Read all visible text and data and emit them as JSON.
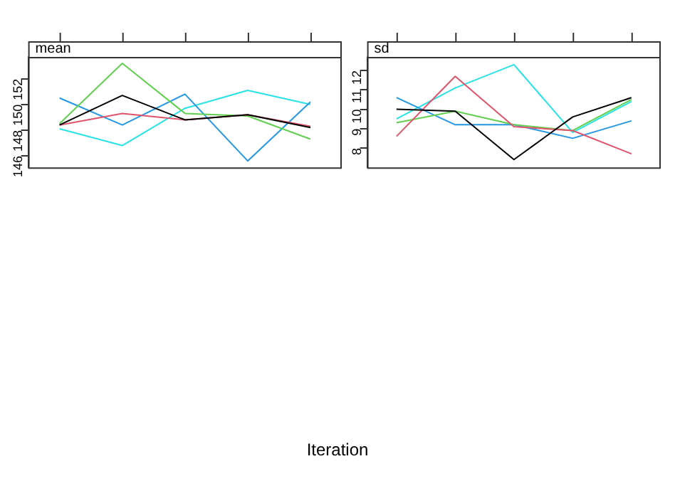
{
  "chart_data": [
    {
      "type": "line",
      "title": "mean",
      "xlabel": "Iteration",
      "categories": [
        null,
        null,
        null,
        null,
        null
      ],
      "ylim": [
        145.1,
        153.7
      ],
      "yticks": [
        146,
        148,
        150,
        152
      ],
      "grid": false,
      "legend": false,
      "tick_labels": "y",
      "series": [
        {
          "color": "#000000",
          "values": [
            148.4,
            150.7,
            148.8,
            149.2,
            148.2
          ]
        },
        {
          "color": "#df536b",
          "values": [
            148.4,
            149.3,
            148.8,
            149.2,
            148.3
          ]
        },
        {
          "color": "#61d04f",
          "values": [
            148.5,
            153.2,
            149.3,
            149.1,
            147.3
          ]
        },
        {
          "color": "#2297e6",
          "values": [
            150.5,
            148.4,
            150.8,
            145.6,
            150.2
          ]
        },
        {
          "color": "#28e2e5",
          "values": [
            148.1,
            146.8,
            149.7,
            151.1,
            150.0
          ]
        }
      ]
    },
    {
      "type": "line",
      "title": "sd",
      "categories": [
        null,
        null,
        null,
        null,
        null
      ],
      "ylim": [
        7.0,
        12.7
      ],
      "yticks": [
        8,
        9,
        10,
        11,
        12
      ],
      "grid": false,
      "legend": false,
      "tick_labels": "y",
      "series": [
        {
          "color": "#000000",
          "values": [
            10.0,
            9.9,
            7.4,
            9.6,
            10.6
          ]
        },
        {
          "color": "#df536b",
          "values": [
            8.6,
            11.7,
            9.1,
            8.9,
            7.7
          ]
        },
        {
          "color": "#61d04f",
          "values": [
            9.3,
            9.9,
            9.2,
            8.9,
            10.5
          ]
        },
        {
          "color": "#2297e6",
          "values": [
            10.6,
            9.2,
            9.2,
            8.5,
            9.4
          ]
        },
        {
          "color": "#28e2e5",
          "values": [
            9.5,
            11.1,
            12.3,
            8.8,
            10.4
          ]
        }
      ]
    }
  ]
}
